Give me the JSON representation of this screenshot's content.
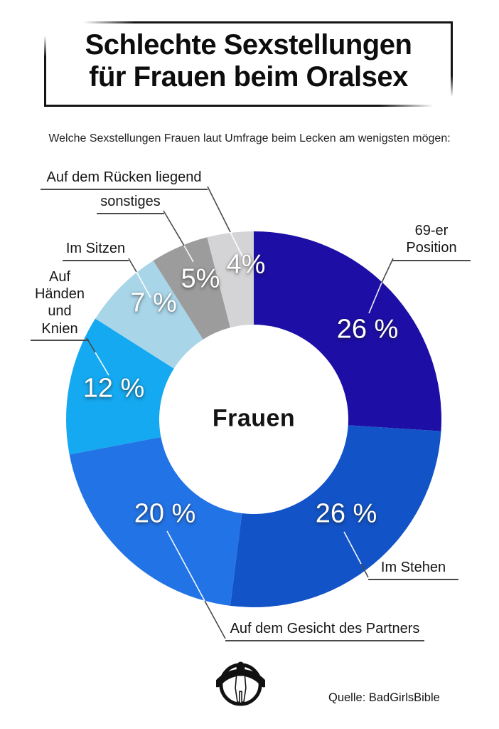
{
  "header": {
    "title_line1": "Schlechte Sexstellungen",
    "title_line2": "für Frauen beim Oralsex",
    "subtitle": "Welche Sexstellungen Frauen laut Umfrage beim Lecken am wenigsten mögen:"
  },
  "chart_data": {
    "type": "pie",
    "subtype": "donut",
    "center_label": "Frauen",
    "unit": "%",
    "start_angle_deg": 0,
    "direction": "clockwise",
    "inner_radius_ratio": 0.5,
    "segments": [
      {
        "label": "69-er Position",
        "value": 26,
        "value_label": "26 %",
        "color": "#1d0ea6"
      },
      {
        "label": "Im Stehen",
        "value": 26,
        "value_label": "26 %",
        "color": "#1253c7"
      },
      {
        "label": "Auf dem Gesicht des Partners",
        "value": 20,
        "value_label": "20 %",
        "color": "#2273e6"
      },
      {
        "label": "Auf Händen und Knien",
        "value": 12,
        "value_label": "12 %",
        "color": "#14a9f0"
      },
      {
        "label": "Im Sitzen",
        "value": 7,
        "value_label": "7 %",
        "color": "#a9d5e9"
      },
      {
        "label": "sonstiges",
        "value": 5,
        "value_label": "5%",
        "color": "#9c9c9c"
      },
      {
        "label": "Auf dem Rücken liegend",
        "value": 4,
        "value_label": "4%",
        "color": "#d4d4d6"
      }
    ]
  },
  "footer": {
    "source": "Quelle: BadGirlsBible",
    "logo_name": "figure-in-circle-logo"
  }
}
